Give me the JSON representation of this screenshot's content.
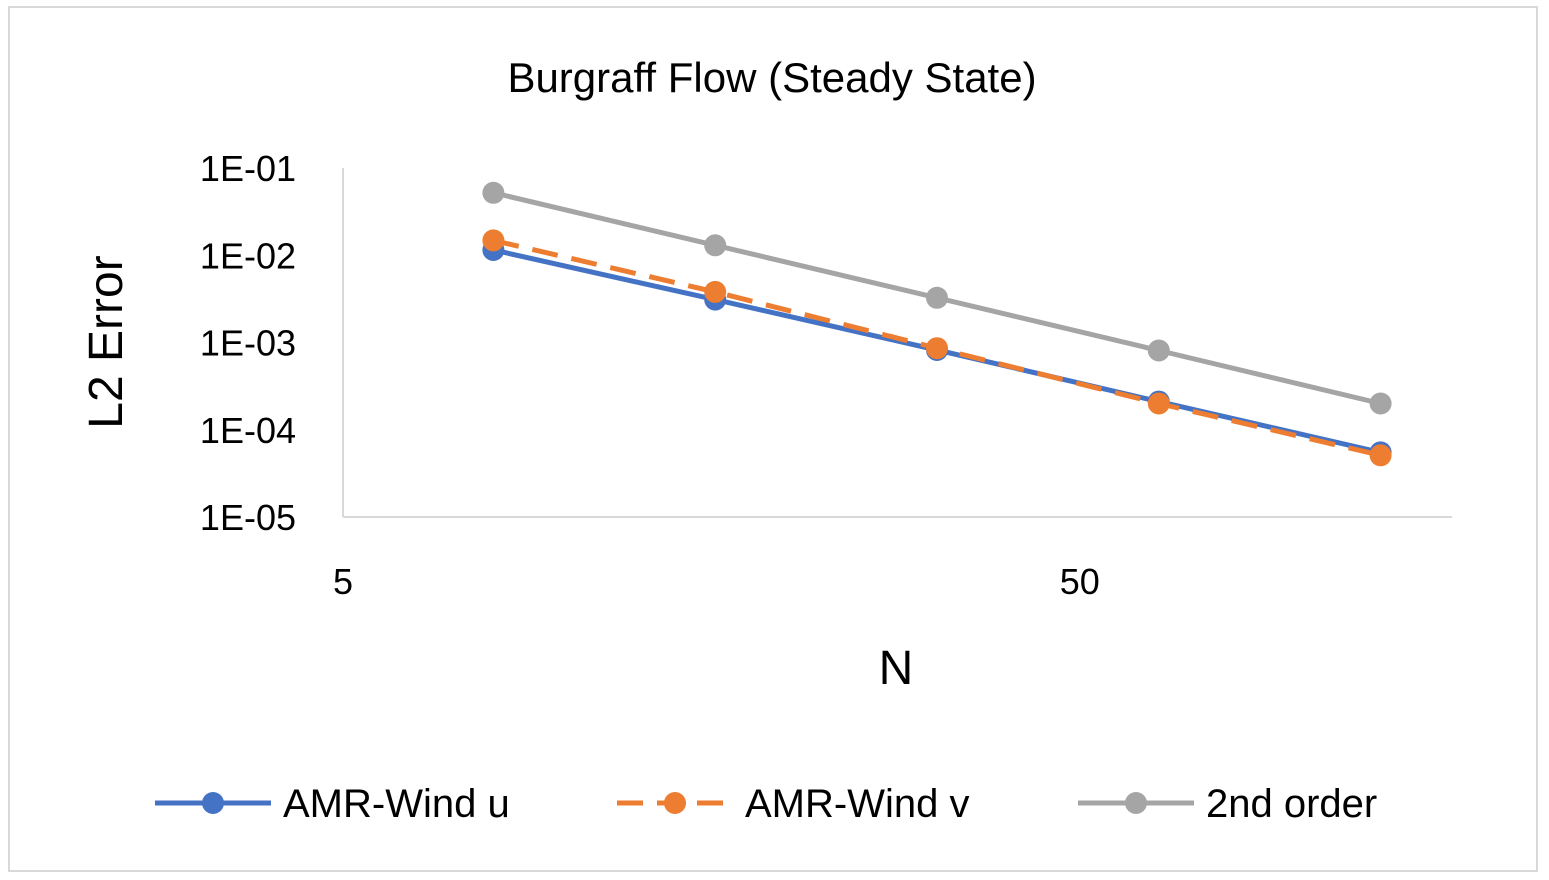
{
  "chart_data": {
    "type": "line",
    "title": "Burgraff Flow (Steady State)",
    "xlabel": "N",
    "ylabel": "L2 Error",
    "x_scale": "log",
    "y_scale": "log",
    "xlim": [
      5,
      160
    ],
    "ylim": [
      1e-05,
      0.1
    ],
    "x_ticks": [
      {
        "value": 5,
        "label": "5"
      },
      {
        "value": 50,
        "label": "50"
      }
    ],
    "y_ticks": [
      {
        "value": 0.1,
        "label": "1E-01"
      },
      {
        "value": 0.01,
        "label": "1E-02"
      },
      {
        "value": 0.001,
        "label": "1E-03"
      },
      {
        "value": 0.0001,
        "label": "1E-04"
      },
      {
        "value": 1e-05,
        "label": "1E-05"
      }
    ],
    "x": [
      8,
      16,
      32,
      64,
      128
    ],
    "series": [
      {
        "name": "AMR-Wind u",
        "color": "#4472C4",
        "dash": "solid",
        "values": [
          0.0115,
          0.0031,
          0.00082,
          0.00021,
          5.5e-05
        ]
      },
      {
        "name": "AMR-Wind v",
        "color": "#ED7D31",
        "dash": "dashed",
        "values": [
          0.0148,
          0.0038,
          0.00086,
          0.0002,
          5.1e-05
        ]
      },
      {
        "name": "2nd order",
        "color": "#A5A5A5",
        "dash": "solid",
        "values": [
          0.052,
          0.013,
          0.00325,
          0.00081,
          0.0002
        ]
      }
    ],
    "grid": false,
    "legend": "bottom"
  }
}
